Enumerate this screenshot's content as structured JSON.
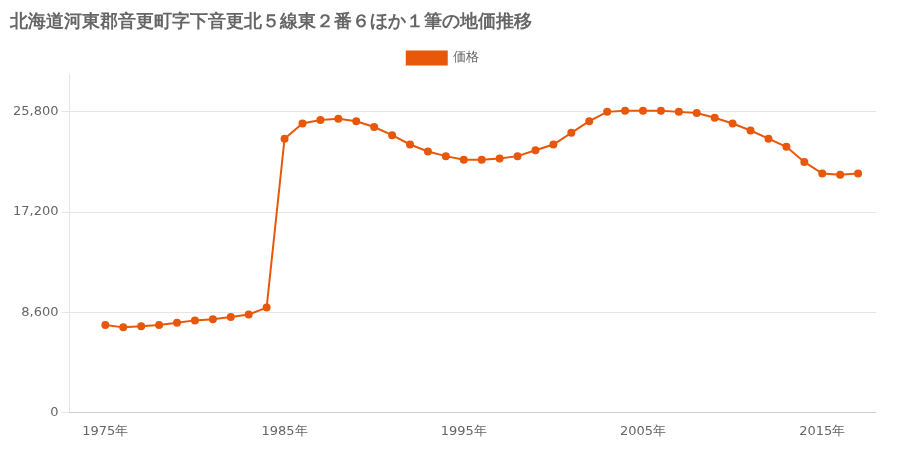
{
  "chart_data": {
    "type": "line",
    "title": "北海道河東郡音更町字下音更北５線東２番６ほか１筆の地価推移",
    "x": [
      1975,
      1976,
      1977,
      1978,
      1979,
      1980,
      1981,
      1982,
      1983,
      1984,
      1985,
      1986,
      1987,
      1988,
      1989,
      1990,
      1991,
      1992,
      1993,
      1994,
      1995,
      1996,
      1997,
      1998,
      1999,
      2000,
      2001,
      2002,
      2003,
      2004,
      2005,
      2006,
      2007,
      2008,
      2009,
      2010,
      2011,
      2012,
      2013,
      2014,
      2015,
      2016,
      2017
    ],
    "series": [
      {
        "name": "価格",
        "color": "#e8580a",
        "marker": "circle",
        "values": [
          7500,
          7300,
          7400,
          7500,
          7700,
          7900,
          8000,
          8200,
          8400,
          9000,
          23500,
          24800,
          25100,
          25200,
          25000,
          24500,
          23800,
          23000,
          22400,
          22000,
          21700,
          21700,
          21800,
          22000,
          22500,
          23000,
          24000,
          25000,
          25800,
          25900,
          25900,
          25900,
          25800,
          25700,
          25300,
          24800,
          24200,
          23500,
          22800,
          21500,
          20500,
          20400,
          20500
        ]
      }
    ],
    "xlim": [
      1973,
      2018
    ],
    "xticks": [
      {
        "value": 1975,
        "label": "1975年"
      },
      {
        "value": 1985,
        "label": "1985年"
      },
      {
        "value": 1995,
        "label": "1995年"
      },
      {
        "value": 2005,
        "label": "2005年"
      },
      {
        "value": 2015,
        "label": "2015年"
      }
    ],
    "ylim": [
      0,
      29000
    ],
    "yticks": [
      0,
      {
        "value": 8600,
        "label": "8,600"
      },
      {
        "value": 17200,
        "label": "17,200"
      },
      {
        "value": 25800,
        "label": "25,800"
      }
    ],
    "grid": "y",
    "legend": "top"
  }
}
